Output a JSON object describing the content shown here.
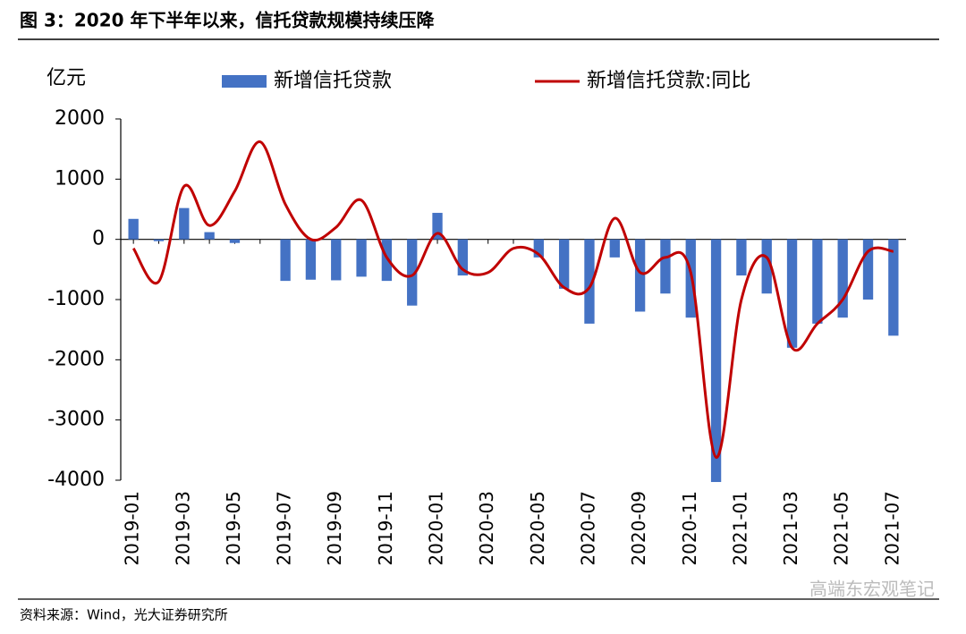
{
  "title": "图 3：2020 年下半年以来，信托贷款规模持续压降",
  "source": "资料来源：Wind，光大证券研究所",
  "watermark": "高端东宏观笔记",
  "chart_data": {
    "type": "bar-line",
    "y_label": "亿元",
    "categories": [
      "2019-01",
      null,
      "2019-03",
      null,
      "2019-05",
      null,
      "2019-07",
      null,
      "2019-09",
      null,
      "2019-11",
      null,
      "2020-01",
      null,
      "2020-03",
      null,
      "2020-05",
      null,
      "2020-07",
      null,
      "2020-09",
      null,
      "2020-11",
      null,
      "2021-01",
      null,
      "2021-03",
      null,
      "2021-05",
      null,
      "2021-07"
    ],
    "series": [
      {
        "name": "新增信托贷款",
        "type": "bar",
        "color": "#4472c4",
        "values": [
          340,
          -30,
          520,
          120,
          -60,
          0,
          -690,
          -670,
          -680,
          -620,
          -690,
          -1100,
          440,
          -600,
          0,
          0,
          -300,
          -820,
          -1400,
          -300,
          -1200,
          -900,
          -1300,
          -4030,
          -600,
          -900,
          -1800,
          -1400,
          -1300,
          -1000,
          -1600
        ]
      },
      {
        "name": "新增信托贷款:同比",
        "type": "line",
        "color": "#c00000",
        "values": [
          -150,
          -700,
          880,
          230,
          800,
          1620,
          580,
          0,
          200,
          650,
          -300,
          -600,
          100,
          -500,
          -550,
          -150,
          -250,
          -800,
          -800,
          350,
          -550,
          -300,
          -550,
          -3620,
          -1000,
          -300,
          -1800,
          -1400,
          -1000,
          -200,
          -200
        ]
      }
    ],
    "ylim": [
      -4000,
      2000
    ],
    "yticks": [
      -4000,
      -3000,
      -2000,
      -1000,
      0,
      1000,
      2000
    ]
  }
}
